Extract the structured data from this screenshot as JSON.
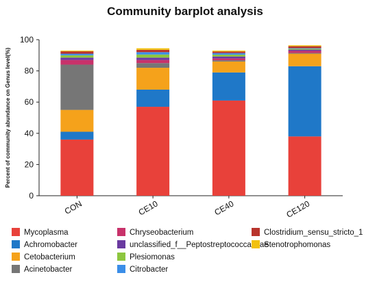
{
  "chart_data": {
    "type": "bar",
    "stacked": true,
    "title": "Community barplot analysis",
    "xlabel": "",
    "ylabel": "Percent of community abundance on Genus level(%)",
    "ylim": [
      0,
      100
    ],
    "yticks": [
      0,
      20,
      40,
      60,
      80,
      100
    ],
    "grid": false,
    "legend_position": "bottom",
    "categories": [
      "CON",
      "CE10",
      "CE40",
      "CE120"
    ],
    "series": [
      {
        "name": "Mycoplasma",
        "color": "#e8413a",
        "values": [
          36,
          57,
          61,
          38
        ]
      },
      {
        "name": "Achromobacter",
        "color": "#1f78c8",
        "values": [
          5,
          11,
          18,
          45
        ]
      },
      {
        "name": "Cetobacterium",
        "color": "#f5a21b",
        "values": [
          14,
          14,
          7,
          8
        ]
      },
      {
        "name": "Acinetobacter",
        "color": "#767676",
        "values": [
          29,
          3,
          0.8,
          0.5
        ]
      },
      {
        "name": "Chryseobacterium",
        "color": "#c8326a",
        "values": [
          3,
          2,
          1.2,
          1.3
        ]
      },
      {
        "name": "unclassified_f__Peptostreptococcaceae",
        "color": "#6a3aa0",
        "values": [
          1.5,
          1.5,
          1.2,
          0.8
        ]
      },
      {
        "name": "Plesiomonas",
        "color": "#8dc63f",
        "values": [
          1.5,
          2,
          1.2,
          0.6
        ]
      },
      {
        "name": "Citrobacter",
        "color": "#3b8ee8",
        "values": [
          1,
          1.5,
          1,
          0.4
        ]
      },
      {
        "name": "Clostridium_sensu_stricto_1",
        "color": "#b8342c",
        "values": [
          1.5,
          1.5,
          1,
          1.2
        ]
      },
      {
        "name": "Stenotrophomonas",
        "color": "#f2c10f",
        "values": [
          0.5,
          1,
          0.6,
          0.6
        ]
      }
    ]
  }
}
